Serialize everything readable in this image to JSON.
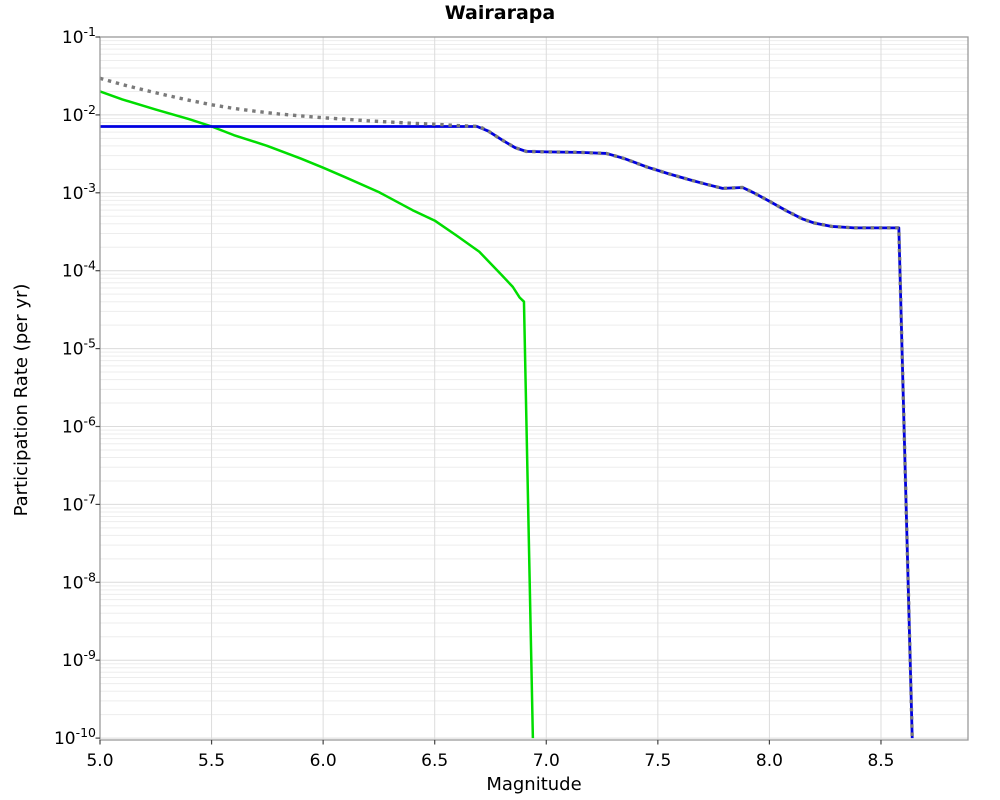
{
  "title": "Wairarapa",
  "chart_data": {
    "type": "line",
    "title": "Wairarapa",
    "xlabel": "Magnitude",
    "ylabel": "Participation Rate (per yr)",
    "xlim": [
      5.0,
      8.89
    ],
    "ylim": [
      1e-10,
      0.1
    ],
    "y_scale": "log",
    "grid": "major and log-minor gridlines, light gray, on",
    "legend_position": "none",
    "x_tick_values": [
      5.0,
      5.5,
      6.0,
      6.5,
      7.0,
      7.5,
      8.0,
      8.5
    ],
    "x_tick_labels": [
      "5.0",
      "5.5",
      "6.0",
      "6.5",
      "7.0",
      "7.5",
      "8.0",
      "8.5"
    ],
    "y_tick_exponents": [
      -1,
      -2,
      -3,
      -4,
      -5,
      -6,
      -7,
      -8,
      -9,
      -10
    ],
    "colors": {
      "green_line": "#00dd00",
      "blue_line": "#0000e0",
      "gray_dotted_line": "#7a7a7a",
      "grid_major": "#dcdcdc",
      "grid_minor": "#ededed",
      "frame": "#9a9a9a",
      "tick": "#444444",
      "background": "#ffffff"
    },
    "series": [
      {
        "name": "green-solid-curve",
        "color": "#00dd00",
        "style": "solid",
        "width": 2.5,
        "points": [
          [
            5.0,
            0.02
          ],
          [
            5.1,
            0.0158
          ],
          [
            5.25,
            0.0117
          ],
          [
            5.4,
            0.0088
          ],
          [
            5.5,
            0.0071
          ],
          [
            5.6,
            0.0055
          ],
          [
            5.75,
            0.004
          ],
          [
            5.9,
            0.00275
          ],
          [
            6.0,
            0.0021
          ],
          [
            6.1,
            0.00158
          ],
          [
            6.25,
            0.00102
          ],
          [
            6.4,
            0.0006
          ],
          [
            6.5,
            0.00044
          ],
          [
            6.6,
            0.00028
          ],
          [
            6.7,
            0.000175
          ],
          [
            6.8,
            8.8e-05
          ],
          [
            6.85,
            6.2e-05
          ],
          [
            6.88,
            4.55e-05
          ],
          [
            6.9,
            4e-05
          ],
          [
            6.94,
            1e-10
          ]
        ]
      },
      {
        "name": "blue-solid-curve",
        "color": "#0000e0",
        "style": "solid",
        "width": 2.8,
        "points": [
          [
            5.0,
            0.0071
          ],
          [
            6.69,
            0.0071
          ],
          [
            6.74,
            0.0062
          ],
          [
            6.8,
            0.0048
          ],
          [
            6.86,
            0.0038
          ],
          [
            6.91,
            0.0034
          ],
          [
            7.0,
            0.00335
          ],
          [
            7.15,
            0.0033
          ],
          [
            7.27,
            0.0032
          ],
          [
            7.35,
            0.00275
          ],
          [
            7.45,
            0.00215
          ],
          [
            7.55,
            0.00175
          ],
          [
            7.65,
            0.00145
          ],
          [
            7.72,
            0.00128
          ],
          [
            7.79,
            0.00114
          ],
          [
            7.88,
            0.00117
          ],
          [
            7.93,
            0.001
          ],
          [
            8.0,
            0.00078
          ],
          [
            8.08,
            0.00058
          ],
          [
            8.15,
            0.00046
          ],
          [
            8.2,
            0.00041
          ],
          [
            8.28,
            0.00037
          ],
          [
            8.38,
            0.000355
          ],
          [
            8.58,
            0.000355
          ],
          [
            8.64,
            1e-10
          ]
        ]
      },
      {
        "name": "gray-dotted-curve",
        "color": "#7a7a7a",
        "style": "dotted",
        "width": 3.4,
        "points": [
          [
            5.0,
            0.0295
          ],
          [
            5.1,
            0.0245
          ],
          [
            5.2,
            0.0208
          ],
          [
            5.3,
            0.0178
          ],
          [
            5.4,
            0.0154
          ],
          [
            5.5,
            0.0135
          ],
          [
            5.6,
            0.0121
          ],
          [
            5.7,
            0.0111
          ],
          [
            5.8,
            0.0103
          ],
          [
            5.9,
            0.0097
          ],
          [
            6.0,
            0.0092
          ],
          [
            6.1,
            0.0088
          ],
          [
            6.2,
            0.0084
          ],
          [
            6.3,
            0.0081
          ],
          [
            6.4,
            0.0078
          ],
          [
            6.5,
            0.0076
          ],
          [
            6.6,
            0.0073
          ],
          [
            6.7,
            0.0071
          ],
          [
            6.74,
            0.0062
          ],
          [
            6.8,
            0.0048
          ],
          [
            6.86,
            0.0038
          ],
          [
            6.91,
            0.0034
          ],
          [
            7.0,
            0.00335
          ],
          [
            7.15,
            0.0033
          ],
          [
            7.27,
            0.0032
          ],
          [
            7.35,
            0.00275
          ],
          [
            7.45,
            0.00215
          ],
          [
            7.55,
            0.00175
          ],
          [
            7.65,
            0.00145
          ],
          [
            7.72,
            0.00128
          ],
          [
            7.79,
            0.00114
          ],
          [
            7.88,
            0.00117
          ],
          [
            7.93,
            0.001
          ],
          [
            8.0,
            0.00078
          ],
          [
            8.08,
            0.00058
          ],
          [
            8.15,
            0.00046
          ],
          [
            8.2,
            0.00041
          ],
          [
            8.28,
            0.00037
          ],
          [
            8.38,
            0.000355
          ],
          [
            8.58,
            0.000355
          ],
          [
            8.64,
            1e-10
          ]
        ]
      }
    ]
  }
}
